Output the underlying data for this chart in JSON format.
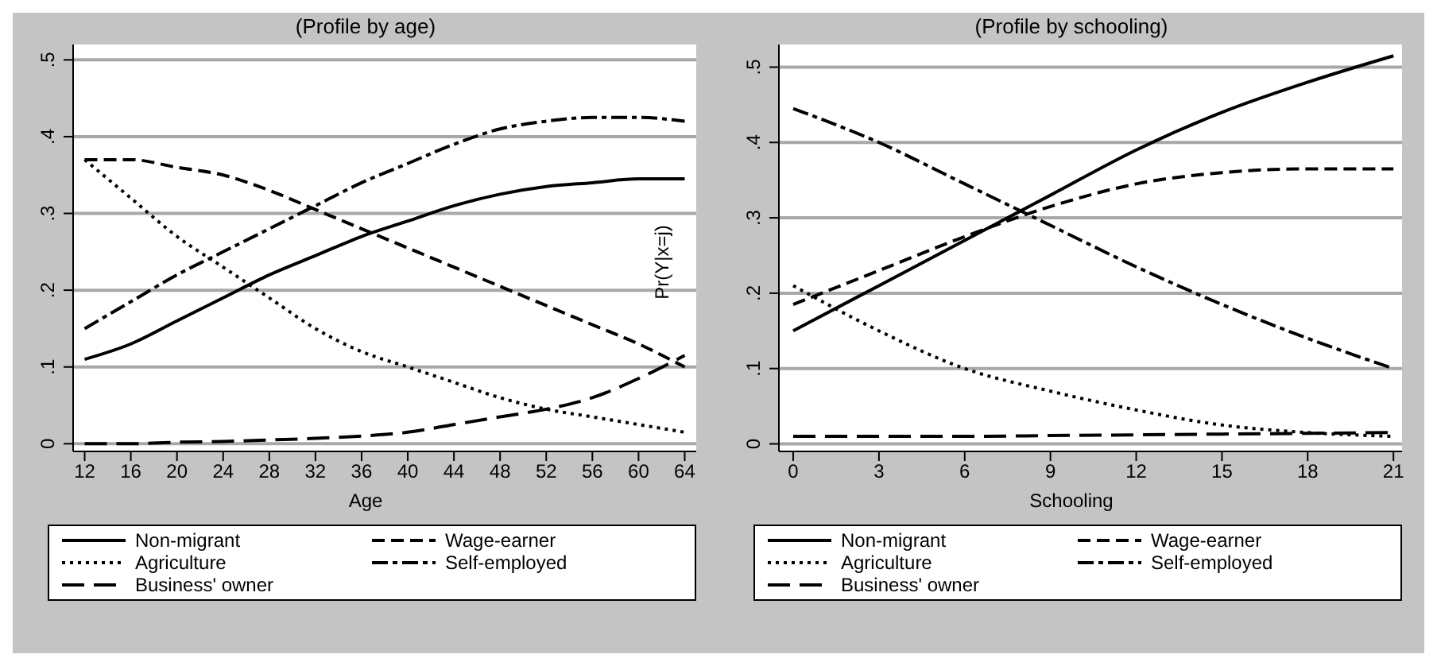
{
  "chart_data": [
    {
      "type": "line",
      "title": "(Profile by age)",
      "xlabel": "Age",
      "annotations": [
        "Pr(Y|x=j)"
      ],
      "x": [
        12,
        16,
        20,
        24,
        28,
        32,
        36,
        40,
        44,
        48,
        52,
        56,
        60,
        64
      ],
      "xlim": [
        11,
        65
      ],
      "xticks": [
        12,
        16,
        20,
        24,
        28,
        32,
        36,
        40,
        44,
        48,
        52,
        56,
        60,
        64
      ],
      "ylim": [
        -0.01,
        0.52
      ],
      "yticks": [
        0,
        {
          "value": 0.1,
          "label": ".1"
        },
        {
          "value": 0.2,
          "label": ".2"
        },
        {
          "value": 0.3,
          "label": ".3"
        },
        {
          "value": 0.4,
          "label": ".4"
        },
        {
          "value": 0.5,
          "label": ".5"
        }
      ],
      "grid": "y",
      "legend": "bottom",
      "marker": "none",
      "series": [
        {
          "name": "Non-migrant",
          "color": "#000000",
          "line_style": "solid",
          "values": [
            0.11,
            0.13,
            0.16,
            0.19,
            0.22,
            0.245,
            0.27,
            0.29,
            0.31,
            0.325,
            0.335,
            0.34,
            0.345,
            0.345
          ]
        },
        {
          "name": "Wage-earner",
          "color": "#000000",
          "line_style": "dashed",
          "values": [
            0.37,
            0.37,
            0.36,
            0.35,
            0.33,
            0.305,
            0.28,
            0.255,
            0.23,
            0.205,
            0.18,
            0.155,
            0.13,
            0.1
          ]
        },
        {
          "name": "Agriculture",
          "color": "#000000",
          "line_style": "dotted",
          "values": [
            0.37,
            0.32,
            0.27,
            0.23,
            0.19,
            0.15,
            0.12,
            0.1,
            0.08,
            0.06,
            0.045,
            0.035,
            0.025,
            0.015
          ]
        },
        {
          "name": "Self-employed",
          "color": "#000000",
          "line_style": "dashdot",
          "values": [
            0.15,
            0.185,
            0.22,
            0.25,
            0.28,
            0.31,
            0.34,
            0.365,
            0.39,
            0.41,
            0.42,
            0.425,
            0.425,
            0.42
          ]
        },
        {
          "name": "Business' owner",
          "color": "#000000",
          "line_style": "longdash",
          "values": [
            0,
            0,
            0.002,
            0.003,
            0.005,
            0.007,
            0.01,
            0.015,
            0.025,
            0.035,
            0.045,
            0.06,
            0.085,
            0.115
          ]
        }
      ]
    },
    {
      "type": "line",
      "title": "(Profile by schooling)",
      "xlabel": "Schooling",
      "x": [
        0,
        3,
        6,
        9,
        12,
        15,
        18,
        21
      ],
      "xlim": [
        -0.5,
        21.3
      ],
      "xticks": [
        0,
        3,
        6,
        9,
        12,
        15,
        18,
        21
      ],
      "ylim": [
        -0.01,
        0.53
      ],
      "yticks": [
        0,
        {
          "value": 0.1,
          "label": ".1"
        },
        {
          "value": 0.2,
          "label": ".2"
        },
        {
          "value": 0.3,
          "label": ".3"
        },
        {
          "value": 0.4,
          "label": ".4"
        },
        {
          "value": 0.5,
          "label": ".5"
        }
      ],
      "grid": "y",
      "legend": "bottom",
      "marker": "none",
      "series": [
        {
          "name": "Non-migrant",
          "color": "#000000",
          "line_style": "solid",
          "values": [
            0.15,
            0.21,
            0.27,
            0.33,
            0.39,
            0.44,
            0.48,
            0.515
          ]
        },
        {
          "name": "Wage-earner",
          "color": "#000000",
          "line_style": "dashed",
          "values": [
            0.185,
            0.23,
            0.275,
            0.315,
            0.345,
            0.36,
            0.365,
            0.365
          ]
        },
        {
          "name": "Agriculture",
          "color": "#000000",
          "line_style": "dotted",
          "values": [
            0.21,
            0.15,
            0.1,
            0.07,
            0.045,
            0.025,
            0.015,
            0.01
          ]
        },
        {
          "name": "Self-employed",
          "color": "#000000",
          "line_style": "dashdot",
          "values": [
            0.445,
            0.4,
            0.345,
            0.29,
            0.235,
            0.185,
            0.14,
            0.1
          ]
        },
        {
          "name": "Business' owner",
          "color": "#000000",
          "line_style": "longdash",
          "values": [
            0.01,
            0.01,
            0.01,
            0.011,
            0.012,
            0.013,
            0.014,
            0.015
          ]
        }
      ]
    }
  ]
}
